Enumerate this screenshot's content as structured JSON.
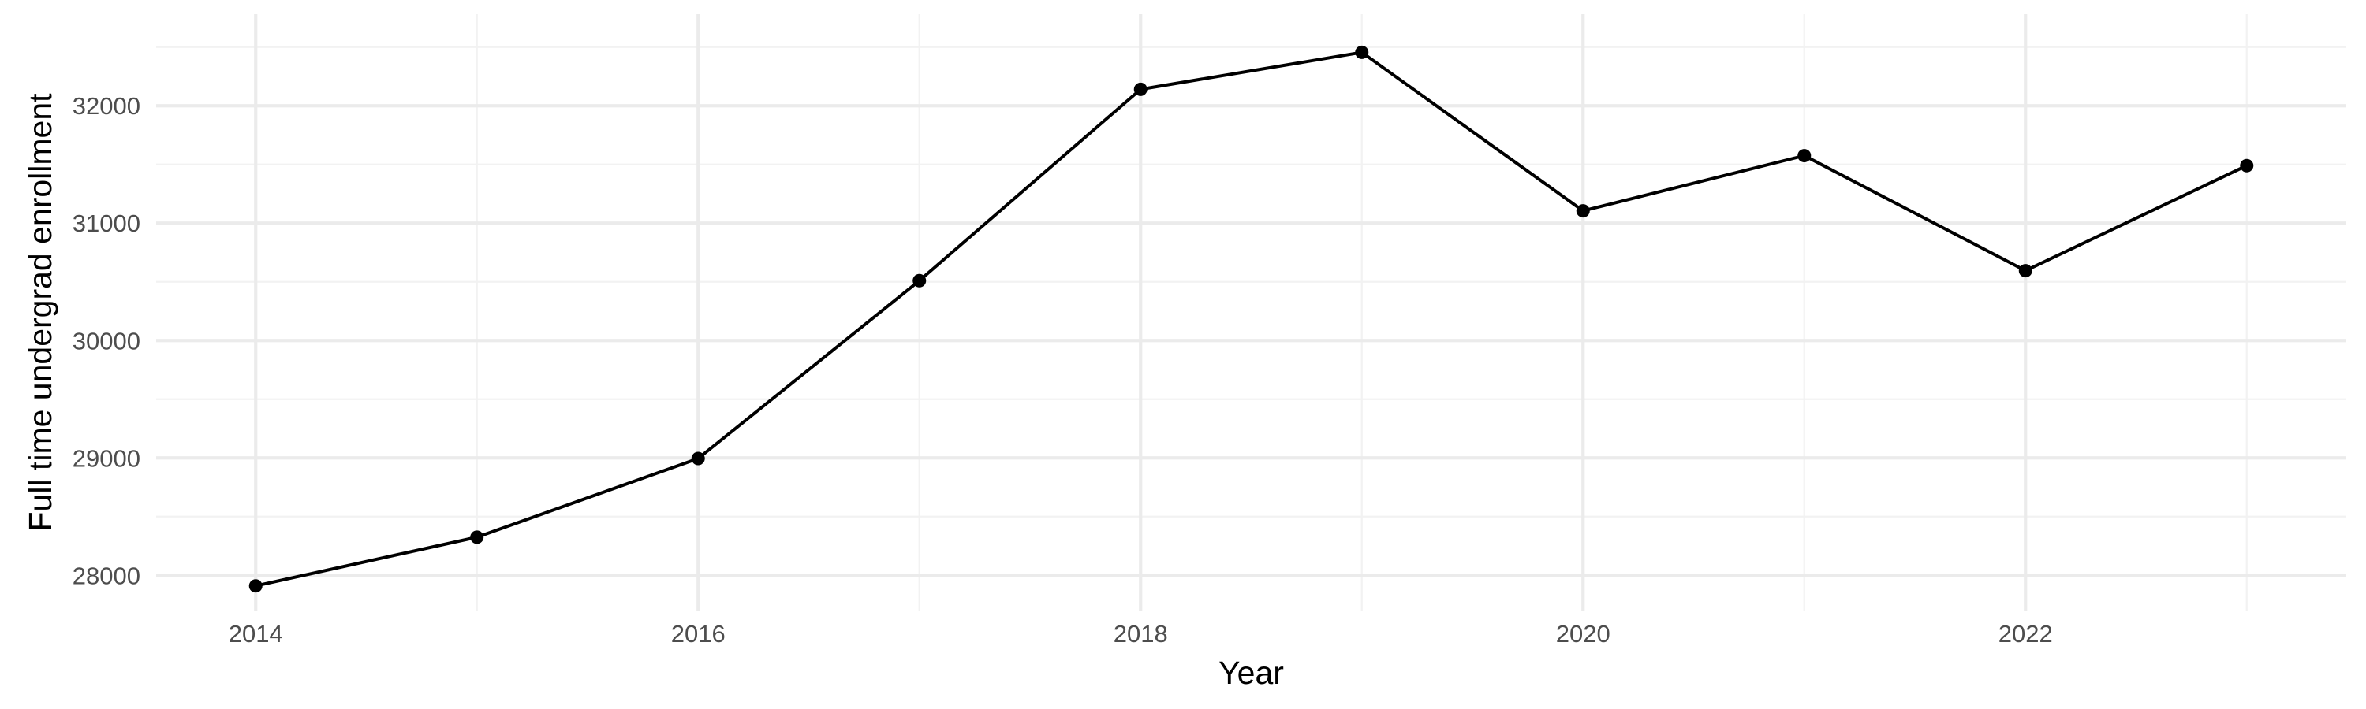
{
  "chart_data": {
    "type": "line",
    "title": "",
    "xlabel": "Year",
    "ylabel": "Full time undergrad enrollment",
    "x": [
      2014,
      2015,
      2016,
      2017,
      2018,
      2019,
      2020,
      2021,
      2022,
      2023
    ],
    "series": [
      {
        "values": [
          27910,
          28325,
          28995,
          30510,
          32140,
          32455,
          31105,
          31575,
          30595,
          31490
        ]
      }
    ],
    "xticks": [
      "2014",
      "2016",
      "2018",
      "2020",
      "2022"
    ],
    "yticks": [
      "28000",
      "29000",
      "30000",
      "31000",
      "32000"
    ],
    "xlim": [
      2013.55,
      2023.45
    ],
    "ylim": [
      27700,
      32780
    ],
    "grid": true,
    "legend": "none",
    "colors": {
      "line": "#000000",
      "point": "#000000",
      "grid_major": "#ebebeb",
      "grid_minor": "#f2f2f2",
      "tick_text": "#4d4d4d"
    }
  }
}
